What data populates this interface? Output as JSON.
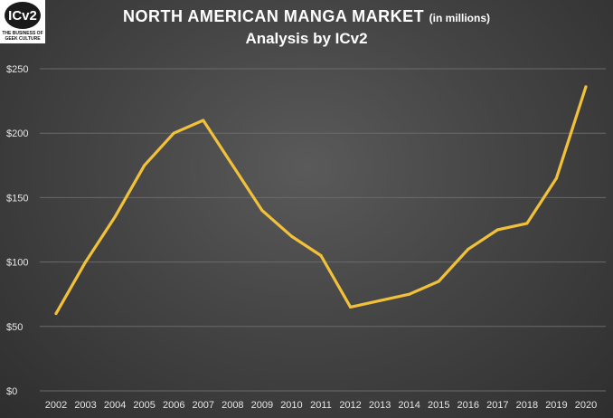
{
  "logo": {
    "mark": "ICv2",
    "line1": "THE BUSINESS OF",
    "line2": "GEEK CULTURE"
  },
  "header": {
    "title": "NORTH AMERICAN MANGA MARKET",
    "title_unit": "(in millions)",
    "subtitle": "Analysis by ICv2"
  },
  "colors": {
    "line": "#f2c13a",
    "grid": "#6a6a6a",
    "text": "#e6e6e6"
  },
  "chart_data": {
    "type": "line",
    "title": "NORTH AMERICAN MANGA MARKET (in millions)",
    "subtitle": "Analysis by ICv2",
    "x": [
      "2002",
      "2003",
      "2004",
      "2005",
      "2006",
      "2007",
      "2008",
      "2009",
      "2010",
      "2011",
      "2012",
      "2013",
      "2014",
      "2015",
      "2016",
      "2017",
      "2018",
      "2019",
      "2020"
    ],
    "series": [
      {
        "values": [
          60,
          100,
          135,
          175,
          200,
          210,
          175,
          140,
          120,
          105,
          65,
          70,
          75,
          85,
          110,
          125,
          130,
          165,
          236
        ]
      }
    ],
    "yticks": [
      0,
      50,
      100,
      150,
      200,
      250
    ],
    "ytick_labels": [
      "$0",
      "$50",
      "$100",
      "$150",
      "$200",
      "$250"
    ],
    "ylim": [
      0,
      250
    ],
    "grid": true,
    "legend": "none"
  }
}
